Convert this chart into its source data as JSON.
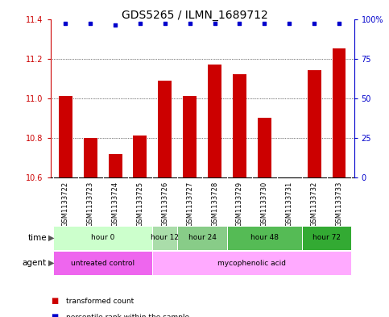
{
  "title": "GDS5265 / ILMN_1689712",
  "samples": [
    "GSM1133722",
    "GSM1133723",
    "GSM1133724",
    "GSM1133725",
    "GSM1133726",
    "GSM1133727",
    "GSM1133728",
    "GSM1133729",
    "GSM1133730",
    "GSM1133731",
    "GSM1133732",
    "GSM1133733"
  ],
  "bar_values": [
    11.01,
    10.8,
    10.72,
    10.81,
    11.09,
    11.01,
    11.17,
    11.12,
    10.9,
    10.6,
    11.14,
    11.25
  ],
  "percentile_values": [
    97,
    97,
    96,
    97,
    97,
    97,
    97,
    97,
    97,
    97,
    97,
    97
  ],
  "bar_color": "#cc0000",
  "percentile_color": "#0000cc",
  "ylim": [
    10.6,
    11.4
  ],
  "yticks_left": [
    10.6,
    10.8,
    11.0,
    11.2,
    11.4
  ],
  "yticks_right": [
    0,
    25,
    50,
    75,
    100
  ],
  "time_groups": [
    {
      "label": "hour 0",
      "cols": [
        0,
        1,
        2,
        3
      ],
      "color": "#ccffcc"
    },
    {
      "label": "hour 12",
      "cols": [
        4
      ],
      "color": "#aaddaa"
    },
    {
      "label": "hour 24",
      "cols": [
        5,
        6
      ],
      "color": "#88cc88"
    },
    {
      "label": "hour 48",
      "cols": [
        7,
        8,
        9
      ],
      "color": "#55bb55"
    },
    {
      "label": "hour 72",
      "cols": [
        10,
        11
      ],
      "color": "#33aa33"
    }
  ],
  "agent_groups": [
    {
      "label": "untreated control",
      "cols": [
        0,
        1,
        2,
        3
      ],
      "color": "#ee66ee"
    },
    {
      "label": "mycophenolic acid",
      "cols": [
        4,
        5,
        6,
        7,
        8,
        9,
        10,
        11
      ],
      "color": "#ffaaff"
    }
  ],
  "legend_items": [
    {
      "label": "transformed count",
      "color": "#cc0000"
    },
    {
      "label": "percentile rank within the sample",
      "color": "#0000cc"
    }
  ],
  "bar_bottom": 10.6,
  "background_color": "#ffffff",
  "sample_bg_color": "#cccccc",
  "title_fontsize": 10,
  "tick_fontsize": 7,
  "sample_label_fontsize": 6,
  "bar_width": 0.55
}
